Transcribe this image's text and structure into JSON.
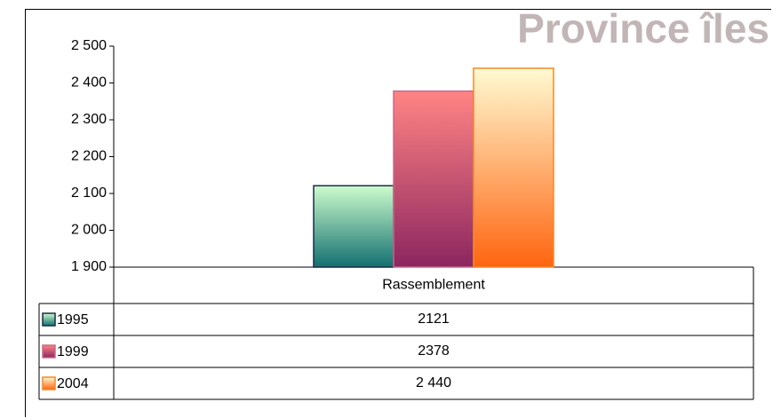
{
  "chart_data": {
    "type": "bar",
    "title": "Province îles",
    "categories": [
      "Rassemblement"
    ],
    "series": [
      {
        "name": "1995",
        "color": "#1c2a4a",
        "gradient": [
          "#cdfccd",
          "#137070"
        ],
        "values": [
          2121
        ]
      },
      {
        "name": "1999",
        "color": "#c86a8a",
        "gradient": [
          "#ff8484",
          "#8c2660"
        ],
        "values": [
          2378
        ]
      },
      {
        "name": "2004",
        "color": "#f08a28",
        "gradient": [
          "#fffad2",
          "#ff6410"
        ],
        "values": [
          2440
        ],
        "value_labels": [
          "2 440"
        ]
      }
    ],
    "ylim": [
      1900,
      2500
    ],
    "yticks": [
      {
        "value": 1900,
        "label": "1 900"
      },
      {
        "value": 2000,
        "label": "2 000"
      },
      {
        "value": 2100,
        "label": "2 100"
      },
      {
        "value": 2200,
        "label": "2 200"
      },
      {
        "value": 2300,
        "label": "2 300"
      },
      {
        "value": 2400,
        "label": "2 400"
      },
      {
        "value": 2500,
        "label": "2 500"
      }
    ]
  }
}
